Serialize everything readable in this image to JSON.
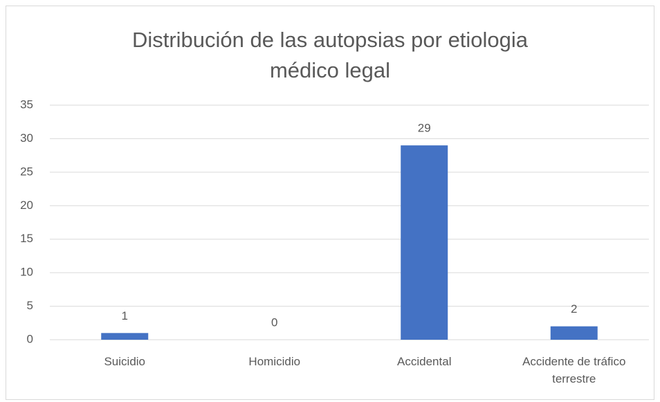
{
  "chart_data": {
    "type": "bar",
    "title": "Distribución de las autopsias por etiologia médico legal",
    "categories": [
      "Suicidio",
      "Homicidio",
      "Accidental",
      "Accidente de tráfico terrestre"
    ],
    "values": [
      1,
      0,
      29,
      2
    ],
    "color": "#4472c4",
    "ylim": [
      0,
      35
    ],
    "yticks": [
      0,
      5,
      10,
      15,
      20,
      25,
      30,
      35
    ],
    "grid": true
  }
}
